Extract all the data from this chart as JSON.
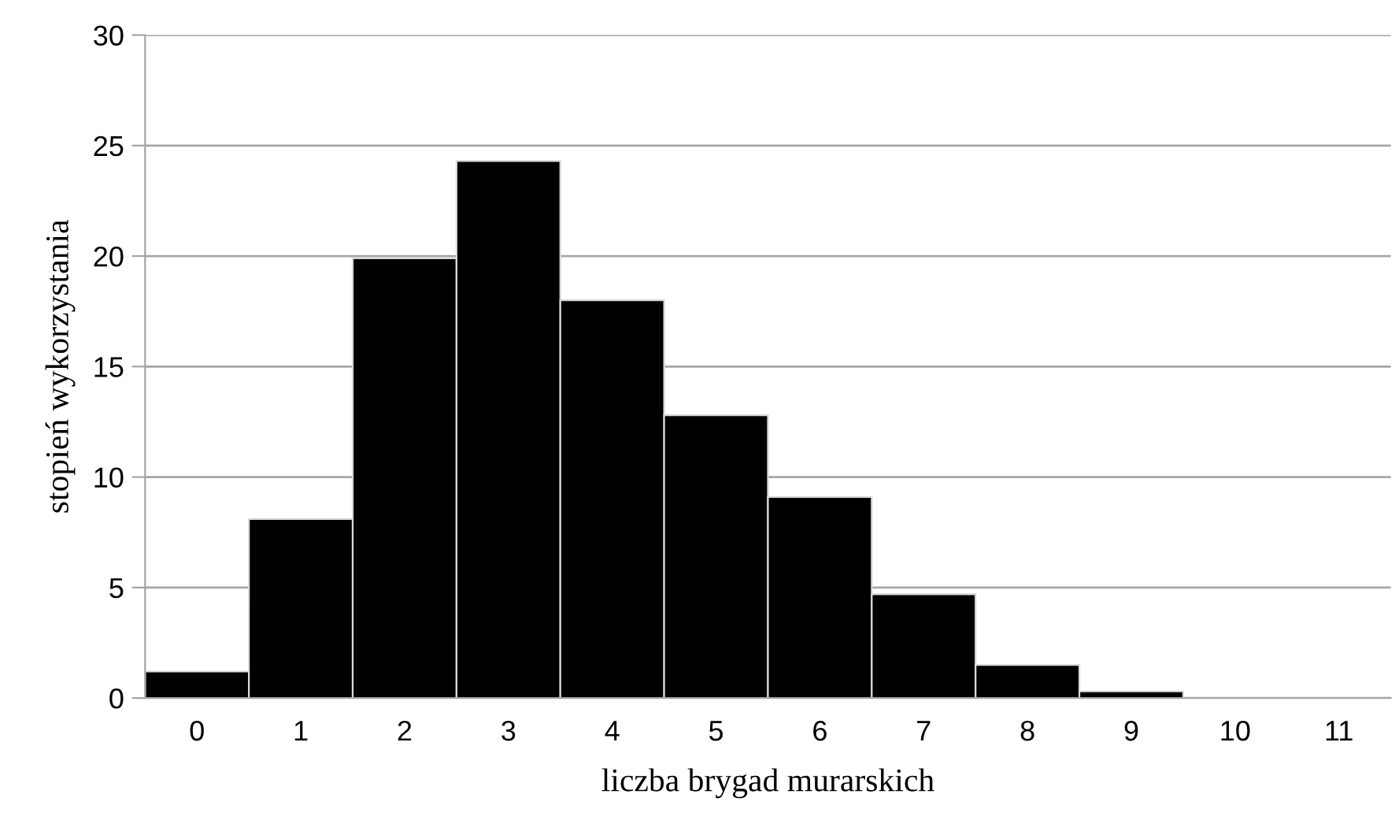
{
  "chart_data": {
    "type": "bar",
    "xlabel": "liczba brygad murarskich",
    "ylabel": "stopień wykorzystania",
    "categories": [
      "0",
      "1",
      "2",
      "3",
      "4",
      "5",
      "6",
      "7",
      "8",
      "9",
      "10",
      "11"
    ],
    "values": [
      1.2,
      8.1,
      19.9,
      24.3,
      18.0,
      12.8,
      9.1,
      4.7,
      1.5,
      0.3,
      0,
      0
    ],
    "color": "#000000",
    "ylim": [
      0,
      30
    ],
    "yticks": [
      0,
      5,
      10,
      15,
      20,
      25,
      30
    ],
    "grid": "y"
  }
}
